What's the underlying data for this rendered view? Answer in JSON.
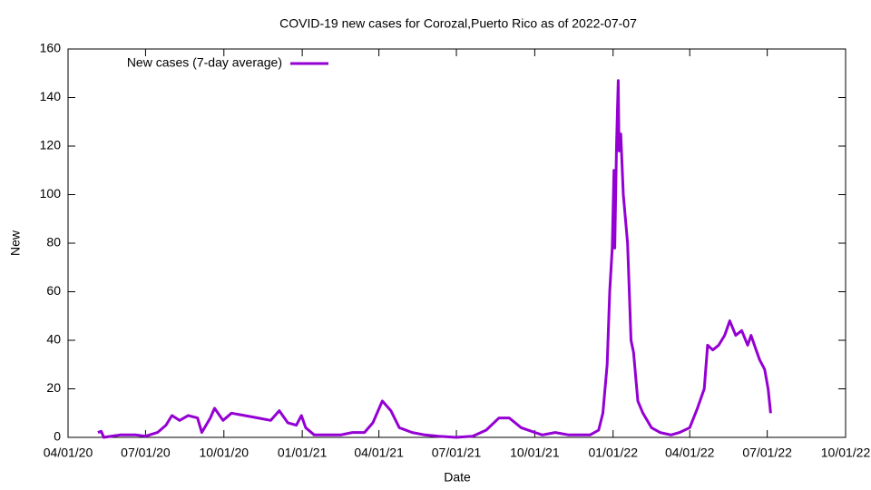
{
  "chart_data": {
    "type": "line",
    "title": "COVID-19 new cases for Corozal,Puerto Rico as of 2022-07-07",
    "xlabel": "Date",
    "ylabel": "New",
    "x": [
      "05/06/20",
      "05/10/20",
      "05/13/20",
      "06/01/20",
      "06/20/20",
      "07/01/20",
      "07/15/20",
      "07/25/20",
      "08/01/20",
      "08/10/20",
      "08/20/20",
      "08/31/20",
      "09/05/20",
      "09/15/20",
      "09/20/20",
      "09/30/20",
      "10/10/20",
      "10/25/20",
      "11/10/20",
      "11/25/20",
      "12/05/20",
      "12/15/20",
      "12/25/20",
      "12/31/20",
      "01/05/21",
      "01/15/21",
      "02/01/21",
      "02/15/21",
      "03/01/21",
      "03/15/21",
      "03/25/21",
      "04/05/21",
      "04/15/21",
      "04/25/21",
      "05/10/21",
      "05/25/21",
      "06/10/21",
      "07/01/21",
      "07/20/21",
      "08/05/21",
      "08/20/21",
      "09/01/21",
      "09/15/21",
      "10/01/21",
      "10/10/21",
      "10/25/21",
      "11/10/21",
      "11/25/21",
      "12/05/21",
      "12/15/21",
      "12/20/21",
      "12/25/21",
      "12/28/21",
      "12/31/21",
      "01/02/22",
      "01/03/22",
      "01/05/22",
      "01/07/22",
      "01/08/22",
      "01/10/22",
      "01/13/22",
      "01/18/22",
      "01/22/22",
      "01/25/22",
      "01/30/22",
      "02/05/22",
      "02/15/22",
      "02/25/22",
      "03/10/22",
      "03/20/22",
      "04/01/22",
      "04/10/22",
      "04/18/22",
      "04/22/22",
      "04/28/22",
      "05/05/22",
      "05/12/22",
      "05/18/22",
      "05/25/22",
      "06/01/22",
      "06/08/22",
      "06/12/22",
      "06/18/22",
      "06/22/22",
      "06/28/22",
      "07/02/22",
      "07/05/22"
    ],
    "series": [
      {
        "name": "New cases (7-day average)",
        "color": "#9400d3",
        "values": [
          2,
          2.5,
          0,
          1,
          1,
          0.5,
          2,
          5,
          9,
          7,
          9,
          8,
          2,
          8,
          12,
          7,
          10,
          9,
          8,
          7,
          11,
          6,
          5,
          9,
          4,
          1,
          1,
          1,
          2,
          2,
          6,
          15,
          11,
          4,
          2,
          1,
          0.5,
          0,
          0.5,
          3,
          8,
          8,
          4,
          2,
          1,
          2,
          1,
          1,
          1,
          3,
          10,
          30,
          60,
          78,
          110,
          78,
          120,
          147,
          118,
          125,
          100,
          80,
          40,
          35,
          15,
          10,
          4,
          2,
          1,
          2,
          4,
          12,
          20,
          38,
          36,
          38,
          42,
          48,
          42,
          44,
          38,
          42,
          36,
          32,
          28,
          20,
          10
        ]
      }
    ],
    "xlim": [
      "04/01/20",
      "10/01/22"
    ],
    "xticks": [
      "04/01/20",
      "07/01/20",
      "10/01/20",
      "01/01/21",
      "04/01/21",
      "07/01/21",
      "10/01/21",
      "01/01/22",
      "04/01/22",
      "07/01/22",
      "10/01/22"
    ],
    "ylim": [
      0,
      160
    ],
    "yticks": [
      0,
      20,
      40,
      60,
      80,
      100,
      120,
      140,
      160
    ],
    "legend": "top-left"
  }
}
